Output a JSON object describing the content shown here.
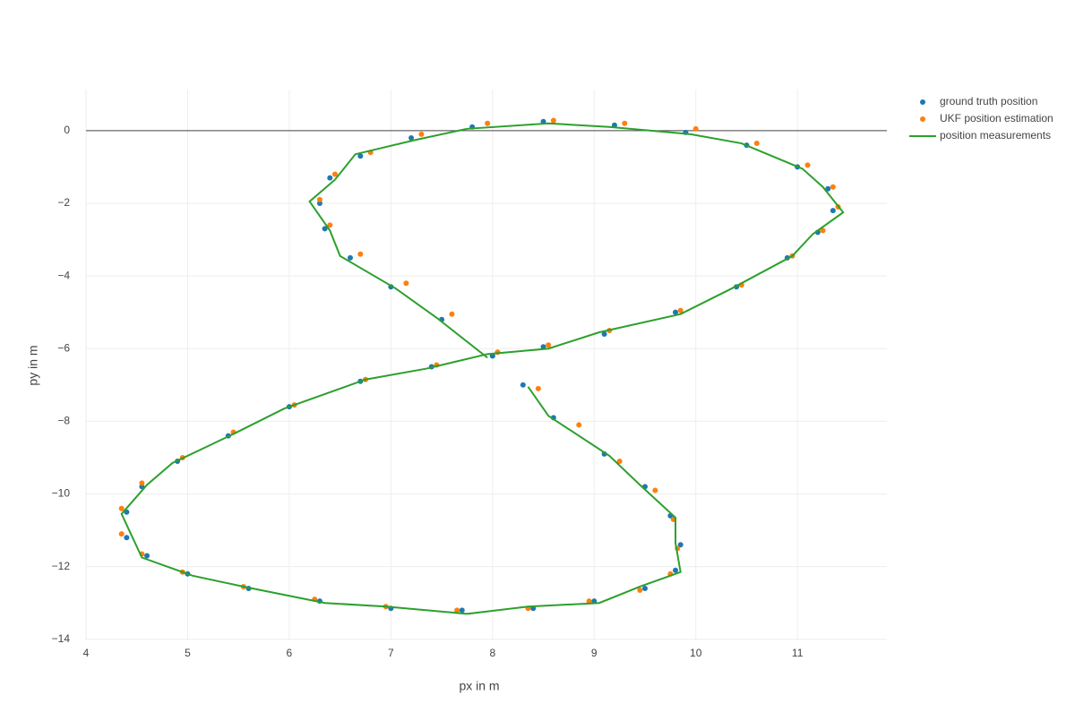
{
  "chart_data": {
    "type": "scatter",
    "xlabel": "px in m",
    "ylabel": "py in m",
    "xlim": [
      4,
      11.88
    ],
    "ylim": [
      -14.03,
      1.13
    ],
    "xticks": [
      4,
      5,
      6,
      7,
      8,
      9,
      10,
      11
    ],
    "yticks": [
      {
        "value": -14,
        "label": "−14"
      },
      {
        "value": -12,
        "label": "−12"
      },
      {
        "value": -10,
        "label": "−10"
      },
      {
        "value": -8,
        "label": "−8"
      },
      {
        "value": -6,
        "label": "−6"
      },
      {
        "value": -4,
        "label": "−4"
      },
      {
        "value": -2,
        "label": "−2"
      },
      0
    ],
    "grid": true,
    "zeroline": true,
    "legend": "right",
    "series": [
      {
        "name": "ground truth position",
        "color": "#1f77b4",
        "mode": "markers",
        "x": [
          8,
          7.5,
          7,
          6.6,
          6.35,
          6.3,
          6.4,
          6.7,
          7.2,
          7.8,
          8.5,
          9.2,
          9.9,
          10.5,
          11,
          11.3,
          11.35,
          11.2,
          10.9,
          10.4,
          9.8,
          9.1,
          8.5,
          8,
          7.4,
          6.7,
          6,
          5.4,
          4.9,
          4.55,
          4.4,
          4.4,
          4.6,
          5,
          5.6,
          6.3,
          7,
          7.7,
          8.4,
          9,
          9.5,
          9.8,
          9.85,
          9.75,
          9.5,
          9.1,
          8.6,
          8.3
        ],
        "values": [
          -6.2,
          -5.2,
          -4.3,
          -3.5,
          -2.7,
          -2,
          -1.3,
          -0.7,
          -0.2,
          0.1,
          0.25,
          0.15,
          -0.05,
          -0.4,
          -1,
          -1.6,
          -2.2,
          -2.8,
          -3.5,
          -4.3,
          -5,
          -5.6,
          -5.95,
          -6.2,
          -6.5,
          -6.9,
          -7.6,
          -8.4,
          -9.1,
          -9.8,
          -10.5,
          -11.2,
          -11.7,
          -12.2,
          -12.6,
          -12.95,
          -13.15,
          -13.2,
          -13.15,
          -12.95,
          -12.6,
          -12.1,
          -11.4,
          -10.6,
          -9.8,
          -8.9,
          -7.9,
          -7
        ]
      },
      {
        "name": "UKF position estimation",
        "color": "#ff7f0e",
        "mode": "markers",
        "x": [
          8.05,
          7.6,
          7.15,
          6.7,
          6.4,
          6.3,
          6.45,
          6.8,
          7.3,
          7.95,
          8.6,
          9.3,
          10,
          10.6,
          11.1,
          11.35,
          11.4,
          11.25,
          10.95,
          10.45,
          9.85,
          9.15,
          8.55,
          8.05,
          7.45,
          6.75,
          6.05,
          5.45,
          4.95,
          4.55,
          4.35,
          4.35,
          4.55,
          4.95,
          5.55,
          6.25,
          6.95,
          7.65,
          8.35,
          8.95,
          9.45,
          9.75,
          9.82,
          9.78,
          9.6,
          9.25,
          8.85,
          8.45
        ],
        "values": [
          -6.1,
          -5.05,
          -4.2,
          -3.4,
          -2.6,
          -1.9,
          -1.2,
          -0.6,
          -0.1,
          0.2,
          0.28,
          0.2,
          0.05,
          -0.35,
          -0.95,
          -1.55,
          -2.1,
          -2.75,
          -3.45,
          -4.25,
          -4.95,
          -5.5,
          -5.9,
          -6.1,
          -6.45,
          -6.85,
          -7.55,
          -8.3,
          -9,
          -9.7,
          -10.4,
          -11.1,
          -11.65,
          -12.15,
          -12.55,
          -12.9,
          -13.1,
          -13.2,
          -13.15,
          -12.95,
          -12.65,
          -12.2,
          -11.5,
          -10.7,
          -9.9,
          -9.1,
          -8.1,
          -7.1
        ]
      },
      {
        "name": "position measurements",
        "color": "#2ca02c",
        "mode": "lines",
        "x": [
          7.95,
          7.45,
          7.05,
          6.5,
          6.4,
          6.2,
          6.45,
          6.65,
          7.25,
          7.75,
          8.55,
          9.15,
          9.95,
          10.45,
          11.05,
          11.25,
          11.45,
          11.15,
          10.95,
          10.35,
          9.85,
          9.05,
          8.55,
          7.95,
          7.35,
          6.75,
          5.95,
          5.45,
          4.85,
          4.6,
          4.35,
          4.45,
          4.55,
          5.05,
          5.55,
          6.35,
          6.95,
          7.75,
          8.35,
          9.05,
          9.45,
          9.85,
          9.8,
          9.8,
          9.45,
          9.15,
          8.55,
          8.35
        ],
        "values": [
          -6.25,
          -5.15,
          -4.35,
          -3.45,
          -2.75,
          -1.95,
          -1.35,
          -0.65,
          -0.25,
          0.05,
          0.2,
          0.1,
          -0.1,
          -0.35,
          -1.05,
          -1.55,
          -2.25,
          -2.85,
          -3.45,
          -4.35,
          -5.05,
          -5.55,
          -6,
          -6.15,
          -6.55,
          -6.85,
          -7.65,
          -8.35,
          -9.15,
          -9.75,
          -10.55,
          -11.15,
          -11.75,
          -12.25,
          -12.55,
          -13,
          -13.1,
          -13.3,
          -13.1,
          -13,
          -12.55,
          -12.15,
          -11.35,
          -10.65,
          -9.75,
          -8.95,
          -7.85,
          -7.05
        ]
      }
    ]
  }
}
